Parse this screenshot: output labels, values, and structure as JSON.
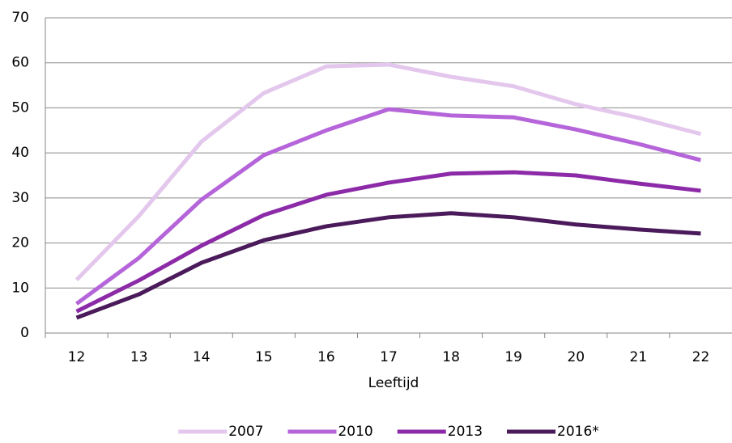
{
  "chart_data": {
    "type": "line",
    "x_label": "Leeftijd",
    "categories": [
      "12",
      "13",
      "14",
      "15",
      "16",
      "17",
      "18",
      "19",
      "20",
      "21",
      "22"
    ],
    "series": [
      {
        "name": "2007",
        "color": "#e4c7ec",
        "values": [
          11.8,
          26,
          42.5,
          53.3,
          59.2,
          59.6,
          56.9,
          54.8,
          50.8,
          47.8,
          44.2
        ]
      },
      {
        "name": "2010",
        "color": "#b565d9",
        "values": [
          6.5,
          16.7,
          29.6,
          39.5,
          45,
          49.7,
          48.3,
          47.9,
          45.2,
          42,
          38.4
        ]
      },
      {
        "name": "2013",
        "color": "#8c2aa8",
        "values": [
          4.8,
          11.7,
          19.4,
          26.2,
          30.7,
          33.4,
          35.4,
          35.7,
          35,
          33.2,
          31.6
        ]
      },
      {
        "name": "2016*",
        "color": "#4a1a5a",
        "values": [
          3.4,
          8.6,
          15.6,
          20.6,
          23.7,
          25.7,
          26.6,
          25.7,
          24.1,
          23,
          22.1
        ]
      }
    ],
    "ylim": [
      0,
      70
    ],
    "yticks": [
      0,
      10,
      20,
      30,
      40,
      50,
      60,
      70
    ],
    "grid": true,
    "legend": "bottom"
  }
}
